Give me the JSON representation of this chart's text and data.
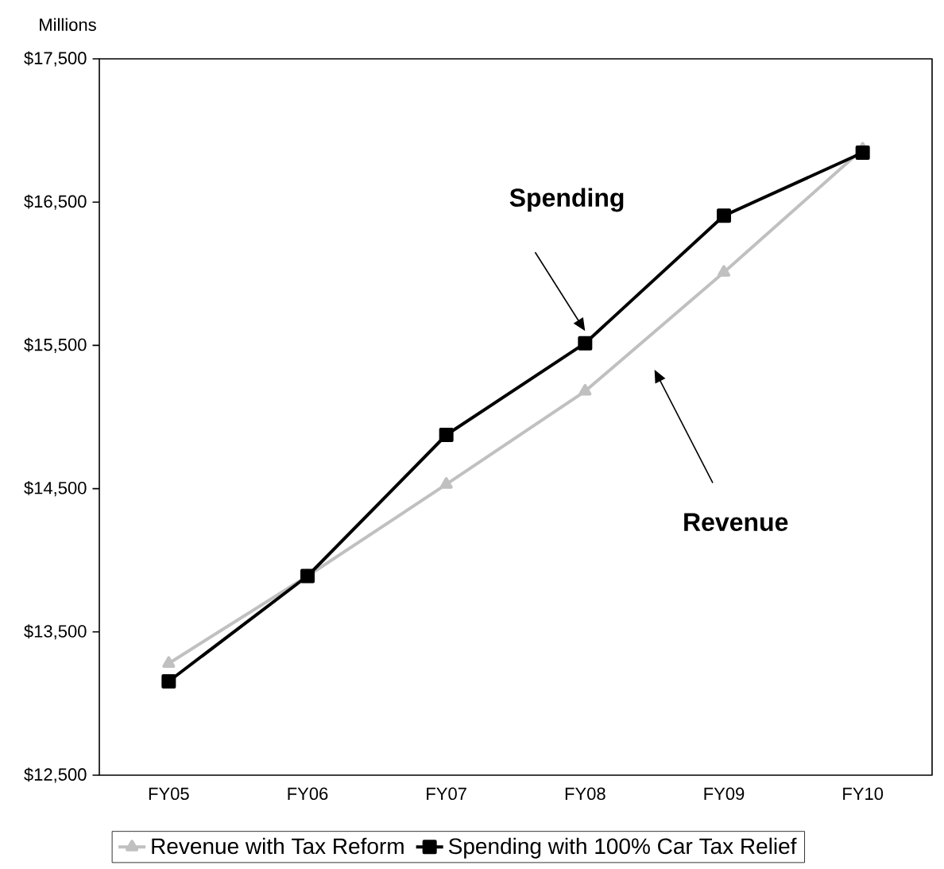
{
  "chart_data": {
    "type": "line",
    "ylabel": "Millions",
    "categories": [
      "FY05",
      "FY06",
      "FY07",
      "FY08",
      "FY09",
      "FY10"
    ],
    "series": [
      {
        "name": "Revenue with Tax Reform",
        "color": "#c0c0c0",
        "marker": "triangle",
        "values": [
          13280,
          13890,
          14530,
          15180,
          16010,
          16870
        ]
      },
      {
        "name": "Spending with 100% Car Tax Relief",
        "color": "#000000",
        "marker": "square",
        "values": [
          13155,
          13890,
          14875,
          15515,
          16405,
          16845
        ]
      }
    ],
    "ylim": [
      12500,
      17500
    ],
    "yticks": [
      {
        "value": 12500,
        "label": "$12,500"
      },
      {
        "value": 13500,
        "label": "$13,500"
      },
      {
        "value": 14500,
        "label": "$14,500"
      },
      {
        "value": 15500,
        "label": "$15,500"
      },
      {
        "value": 16500,
        "label": "$16,500"
      },
      {
        "value": 17500,
        "label": "$17,500"
      }
    ],
    "annotations": [
      "Spending",
      "Revenue"
    ],
    "grid": false,
    "legend": "bottom",
    "line_style": "solid"
  }
}
